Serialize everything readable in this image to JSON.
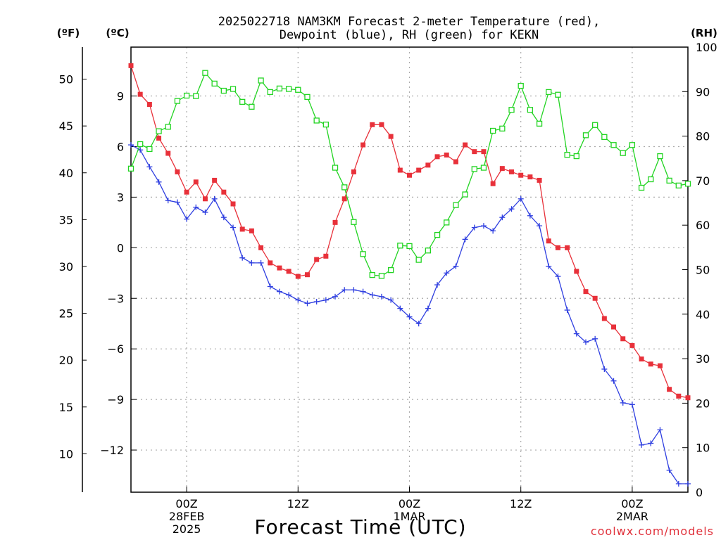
{
  "chart_data": {
    "type": "line",
    "title_line1": "2025022718 NAM3KM Forecast 2-meter Temperature (red),",
    "title_line2": "Dewpoint (blue), RH (green) for KEKN",
    "units": {
      "fahrenheit": "(ºF)",
      "celsius": "(ºC)",
      "rh": "(RH)"
    },
    "xlabel": "Forecast Time (UTC)",
    "credit": "coolwx.com/models",
    "x_range_hours": [
      -6,
      54
    ],
    "celsius_range": [
      -14.5,
      11.9
    ],
    "rh_range": [
      0,
      100
    ],
    "celsius_ticks": [
      9,
      6,
      3,
      0,
      -3,
      -6,
      -9,
      -12
    ],
    "celsius_tick_labels": [
      "9",
      "6",
      "3",
      "0",
      "−3",
      "−6",
      "−9",
      "−12"
    ],
    "fahrenheit_ticks": [
      50,
      45,
      40,
      35,
      30,
      25,
      20,
      15,
      10
    ],
    "rh_ticks": [
      100,
      90,
      80,
      70,
      60,
      50,
      40,
      30,
      20,
      10,
      0
    ],
    "x_ticks": [
      {
        "hour": 0,
        "lines": [
          "00Z",
          "28FEB",
          "2025"
        ]
      },
      {
        "hour": 12,
        "lines": [
          "12Z"
        ]
      },
      {
        "hour": 24,
        "lines": [
          "00Z",
          "1MAR"
        ]
      },
      {
        "hour": 36,
        "lines": [
          "12Z"
        ]
      },
      {
        "hour": 48,
        "lines": [
          "00Z",
          "2MAR"
        ]
      }
    ],
    "hours": [
      -6,
      -5,
      -4,
      -3,
      -2,
      -1,
      0,
      1,
      2,
      3,
      4,
      5,
      6,
      7,
      8,
      9,
      10,
      11,
      12,
      13,
      14,
      15,
      16,
      17,
      18,
      19,
      20,
      21,
      22,
      23,
      24,
      25,
      26,
      27,
      28,
      29,
      30,
      31,
      32,
      33,
      34,
      35,
      36,
      37,
      38,
      39,
      40,
      41,
      42,
      43,
      44,
      45,
      46,
      47,
      48,
      49,
      50,
      51,
      52,
      53,
      54
    ],
    "series": [
      {
        "name": "2-meter Temperature",
        "color": "#e8313a",
        "marker": "filled-square",
        "axis": "celsius",
        "values": [
          10.8,
          9.1,
          8.5,
          6.5,
          5.6,
          4.5,
          3.3,
          3.9,
          2.9,
          4.0,
          3.3,
          2.6,
          1.1,
          1.0,
          0.0,
          -0.9,
          -1.2,
          -1.4,
          -1.7,
          -1.6,
          -0.7,
          -0.5,
          1.5,
          2.9,
          4.5,
          6.1,
          7.3,
          7.3,
          6.6,
          4.6,
          4.3,
          4.6,
          4.9,
          5.4,
          5.5,
          5.1,
          6.1,
          5.7,
          5.7,
          3.8,
          4.7,
          4.5,
          4.3,
          4.2,
          4.0,
          0.4,
          0.0,
          0.0,
          -1.4,
          -2.6,
          -3.0,
          -4.2,
          -4.7,
          -5.4,
          -5.8,
          -6.6,
          -6.9,
          -7.0,
          -8.4,
          -8.8,
          -8.9
        ]
      },
      {
        "name": "Dewpoint",
        "color": "#2f3fe0",
        "marker": "plus",
        "axis": "celsius",
        "values": [
          6.1,
          5.8,
          4.8,
          3.9,
          2.8,
          2.7,
          1.7,
          2.4,
          2.1,
          2.9,
          1.8,
          1.2,
          -0.6,
          -0.9,
          -0.9,
          -2.3,
          -2.6,
          -2.8,
          -3.1,
          -3.3,
          -3.2,
          -3.1,
          -2.9,
          -2.5,
          -2.5,
          -2.6,
          -2.8,
          -2.9,
          -3.1,
          -3.6,
          -4.1,
          -4.5,
          -3.6,
          -2.2,
          -1.5,
          -1.1,
          0.5,
          1.2,
          1.3,
          1.0,
          1.8,
          2.3,
          2.9,
          1.9,
          1.3,
          -1.1,
          -1.7,
          -3.7,
          -5.1,
          -5.6,
          -5.4,
          -7.2,
          -7.9,
          -9.2,
          -9.3,
          -11.7,
          -11.6,
          -10.8,
          -13.2,
          -14.0,
          -14.0
        ]
      },
      {
        "name": "RH",
        "color": "#22d422",
        "marker": "open-square",
        "axis": "rh",
        "values": [
          72.7,
          78.2,
          77.1,
          81.1,
          82.1,
          87.9,
          89.1,
          89.0,
          94.2,
          91.8,
          90.2,
          90.6,
          87.7,
          86.6,
          92.5,
          89.9,
          90.7,
          90.6,
          90.4,
          88.8,
          83.5,
          82.6,
          72.9,
          68.5,
          60.7,
          53.5,
          48.8,
          48.6,
          49.9,
          55.4,
          55.3,
          52.2,
          54.3,
          57.8,
          60.6,
          64.5,
          66.9,
          72.6,
          72.9,
          81.2,
          81.7,
          85.9,
          91.3,
          85.9,
          82.8,
          89.9,
          89.3,
          75.8,
          75.5,
          80.2,
          82.5,
          79.8,
          78.0,
          76.2,
          78.0,
          68.4,
          70.3,
          75.5,
          70.0,
          68.9,
          69.3
        ]
      }
    ]
  }
}
